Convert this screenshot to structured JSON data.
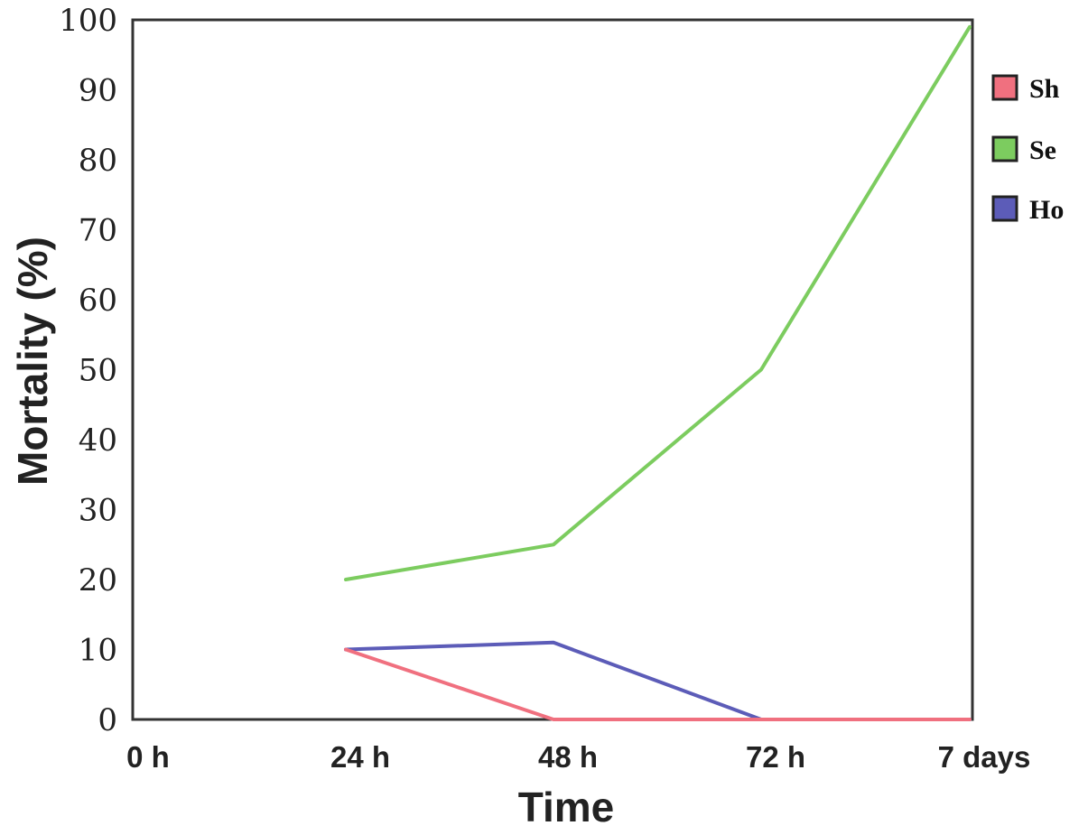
{
  "chart_data": {
    "type": "line",
    "xlabel": "Time",
    "ylabel": "Mortality (%)",
    "categories": [
      "0 h",
      "24 h",
      "48 h",
      "72 h",
      "7 days"
    ],
    "yticks": [
      "0",
      "10",
      "20",
      "30",
      "40",
      "50",
      "60",
      "70",
      "80",
      "90",
      "100"
    ],
    "ylim": [
      0,
      100
    ],
    "grid": false,
    "legend_position": "right",
    "series": [
      {
        "name": "Sh",
        "color": "#f0707f",
        "values": [
          null,
          10,
          0,
          0,
          0
        ]
      },
      {
        "name": "Se",
        "color": "#7ccc5f",
        "values": [
          null,
          20,
          25,
          50,
          99
        ]
      },
      {
        "name": "Ho",
        "color": "#5c5cb8",
        "values": [
          null,
          10,
          11,
          0,
          0
        ]
      }
    ]
  }
}
